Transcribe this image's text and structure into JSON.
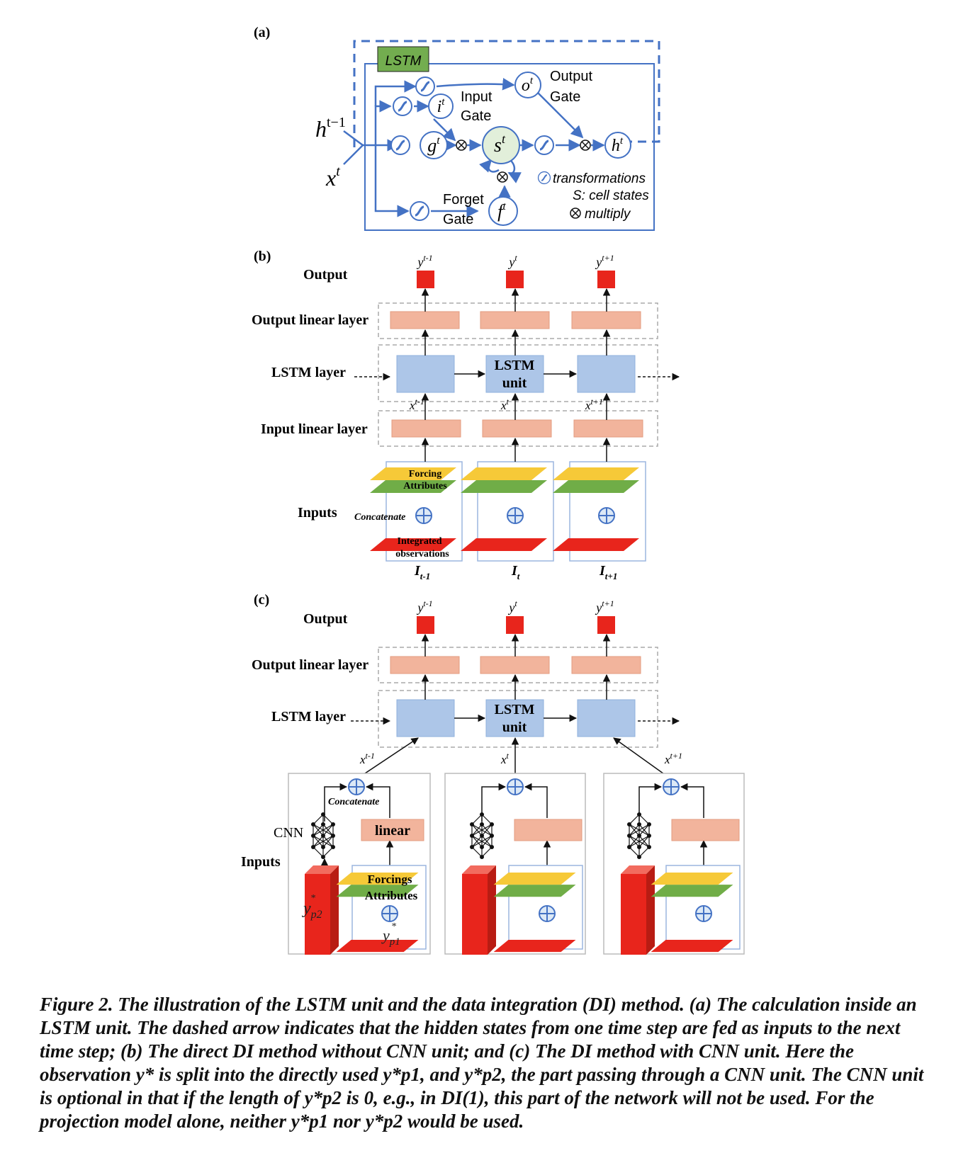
{
  "panels": {
    "a": {
      "label": "(a)",
      "lstm_tag": "LSTM",
      "h_prev": "h",
      "h_prev_sup": "t−1",
      "x_in": "x",
      "x_in_sup": "t",
      "it": "i",
      "gt": "g",
      "st": "s",
      "ot": "o",
      "ft": "f",
      "ht": "h",
      "sup_t": "t",
      "input_gate_1": "Input",
      "input_gate_2": "Gate",
      "output_gate_1": "Output",
      "output_gate_2": "Gate",
      "forget_gate_1": "Forget",
      "forget_gate_2": "Gate",
      "legend_transform": "transformations",
      "legend_cell": "S: cell states",
      "legend_multiply": "multiply",
      "multiply_symbol": "⊗"
    },
    "b": {
      "label": "(b)",
      "output": "Output",
      "output_linear": "Output linear layer",
      "lstm_layer": "LSTM layer",
      "input_linear": "Input linear layer",
      "inputs": "Inputs",
      "lstm_unit_1": "LSTM",
      "lstm_unit_2": "unit",
      "y_prev": "y",
      "y_prev_sup": "t-1",
      "y_cur": "y",
      "y_cur_sup": "t",
      "y_next": "y",
      "y_next_sup": "t+1",
      "x_prev": "x",
      "x_prev_sup": "t-1",
      "x_cur": "x",
      "x_cur_sup": "t",
      "x_next": "x",
      "x_next_sup": "t+1",
      "forcing_1": "Forcing",
      "forcing_2": "Attributes",
      "concatenate": "Concatenate",
      "integrated_1": "Integrated",
      "integrated_2": "observations",
      "i_prev": "I",
      "i_prev_sub": "t-1",
      "i_cur": "I",
      "i_cur_sub": "t",
      "i_next": "I",
      "i_next_sub": "t+1",
      "plus_symbol": "⊕"
    },
    "c": {
      "label": "(c)",
      "output": "Output",
      "output_linear": "Output linear layer",
      "lstm_layer": "LSTM layer",
      "inputs": "Inputs",
      "cnn": "CNN",
      "linear": "linear",
      "concatenate": "Concatenate",
      "forcings_1": "Forcings",
      "forcings_2": "Attributes",
      "lstm_unit_1": "LSTM",
      "lstm_unit_2": "unit",
      "y_prev": "y",
      "y_prev_sup": "t-1",
      "y_cur": "y",
      "y_cur_sup": "t",
      "y_next": "y",
      "y_next_sup": "t+1",
      "x_prev": "x",
      "x_prev_sup": "t-1",
      "x_cur": "x",
      "x_cur_sup": "t",
      "x_next": "x",
      "x_next_sup": "t+1",
      "yp2": "y",
      "yp2_sub": "p2",
      "yp1": "y",
      "yp1_sub": "p1",
      "star": "*"
    }
  },
  "caption": "Figure 2. The illustration of the LSTM unit and the data integration (DI) method. (a) The calculation inside an LSTM unit. The dashed arrow indicates that the hidden states from one time step are fed as inputs to the next time step; (b) The direct DI method without CNN unit; and (c) The DI method with CNN unit. Here the observation y* is split into the directly used y*p1, and y*p2, the part passing through a CNN unit. The CNN unit is optional in that if the length of y*p2 is 0, e.g., in DI(1), this part of the network will not be used. For the projection model alone, neither y*p1 nor y*p2 would be used.",
  "colors": {
    "lstm_blue": "#adc6e8",
    "linear_salmon": "#f2b49c",
    "output_red": "#e8251c",
    "lstm_tag_green": "#73ad4f",
    "forcing_yellow": "#f6c938",
    "attribute_green": "#70ad47",
    "diagram_blue": "#4472c4"
  }
}
